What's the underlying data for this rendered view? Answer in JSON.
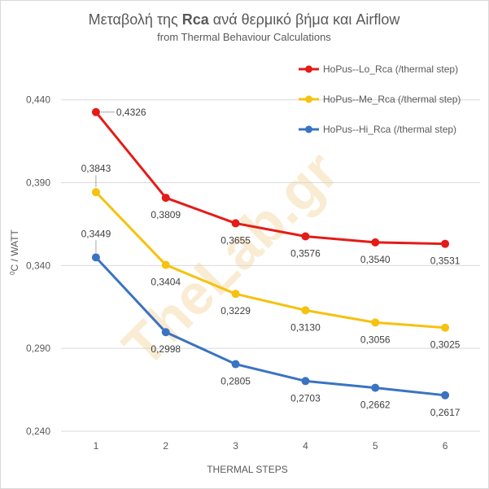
{
  "chart_data": {
    "type": "line",
    "title_prefix": "Μεταβολή της ",
    "title_bold": "Rca",
    "title_suffix": " ανά θερμικό βήμα και  Airflow",
    "subtitle": "from Thermal Behaviour Calculations",
    "xlabel": "THERMAL  STEPS",
    "ylabel_sup": "0",
    "ylabel": "C / WATT",
    "categories": [
      "1",
      "2",
      "3",
      "4",
      "5",
      "6"
    ],
    "ylim": [
      0.24,
      0.46
    ],
    "yticks": [
      {
        "value": 0.24,
        "label": "0,240"
      },
      {
        "value": 0.29,
        "label": "0,290"
      },
      {
        "value": 0.34,
        "label": "0,340"
      },
      {
        "value": 0.39,
        "label": "0,390"
      },
      {
        "value": 0.44,
        "label": "0,440"
      }
    ],
    "grid": "horizontal",
    "legend_position": "top-right",
    "watermark": "TheLab.gr",
    "series": [
      {
        "name": "HoPus--Lo_Rca (/thermal step)",
        "color": "#e41b17",
        "values": [
          0.4326,
          0.3809,
          0.3655,
          0.3576,
          0.354,
          0.3531
        ],
        "labels": [
          "0,4326",
          "0,3809",
          "0,3655",
          "0,3576",
          "0,3540",
          "0,3531"
        ]
      },
      {
        "name": "HoPus--Me_Rca (/thermal step)",
        "color": "#f5c20f",
        "values": [
          0.3843,
          0.3404,
          0.3229,
          0.313,
          0.3056,
          0.3025
        ],
        "labels": [
          "0,3843",
          "0,3404",
          "0,3229",
          "0,3130",
          "0,3056",
          "0,3025"
        ]
      },
      {
        "name": "HoPus--Hi_Rca (/thermal step)",
        "color": "#3a73c2",
        "values": [
          0.3449,
          0.2998,
          0.2805,
          0.2703,
          0.2662,
          0.2617
        ],
        "labels": [
          "0,3449",
          "0,2998",
          "0,2805",
          "0,2703",
          "0,2662",
          "0,2617"
        ]
      }
    ]
  }
}
